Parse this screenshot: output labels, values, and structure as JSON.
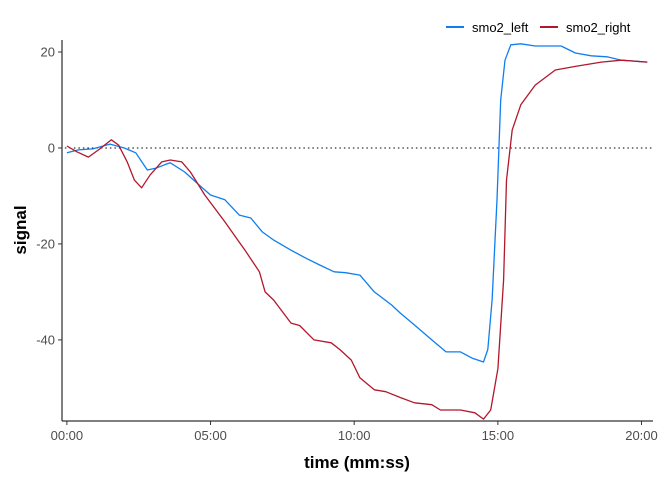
{
  "chart_data": {
    "type": "line",
    "title": "",
    "xlabel": "time (mm:ss)",
    "ylabel": "signal",
    "x_unit": "minutes",
    "xlim": [
      -0.17,
      20.4
    ],
    "ylim": [
      -56.9,
      22.5
    ],
    "x_ticks": [
      0,
      5,
      10,
      15,
      20
    ],
    "x_tick_labels": [
      "00:00",
      "05:00",
      "10:00",
      "15:00",
      "20:00"
    ],
    "y_ticks": [
      20,
      0,
      -20,
      -40
    ],
    "y_tick_labels": [
      "20",
      "0",
      "-20",
      "-40"
    ],
    "grid": false,
    "reference_line": {
      "y": 0,
      "style": "dotted"
    },
    "legend_position": "top-right",
    "series": [
      {
        "name": "smo2_left",
        "color": "#0F7FEF",
        "x": [
          0,
          0.4,
          0.9,
          1.5,
          2.0,
          2.4,
          2.8,
          3.1,
          3.4,
          3.6,
          4.1,
          4.6,
          5.0,
          5.5,
          6.0,
          6.4,
          6.8,
          7.2,
          7.8,
          8.3,
          8.8,
          9.3,
          9.7,
          10.2,
          10.7,
          11.3,
          11.6,
          12.1,
          12.7,
          13.2,
          13.7,
          14.1,
          14.5,
          14.65,
          14.8,
          14.97,
          15.1,
          15.25,
          15.45,
          15.8,
          16.3,
          17.2,
          17.7,
          18.25,
          18.8,
          19.3,
          20.2
        ],
        "y": [
          -1,
          -0.4,
          -0.2,
          0.8,
          0,
          -1,
          -4.6,
          -4.2,
          -3.5,
          -3.1,
          -5,
          -7.7,
          -9.8,
          -10.8,
          -14,
          -14.6,
          -17.5,
          -19.2,
          -21.3,
          -22.9,
          -24.4,
          -25.8,
          -26,
          -26.5,
          -30,
          -32.7,
          -34.4,
          -36.9,
          -40,
          -42.5,
          -42.5,
          -43.8,
          -44.6,
          -42,
          -31.7,
          -10.8,
          10,
          18.3,
          21.5,
          21.7,
          21.25,
          21.25,
          19.8,
          19.2,
          19,
          18.3,
          17.9
        ]
      },
      {
        "name": "smo2_right",
        "color": "#B2182B",
        "x": [
          0,
          0.35,
          0.75,
          1.1,
          1.55,
          1.8,
          2.1,
          2.35,
          2.6,
          2.9,
          3.3,
          3.6,
          4.0,
          4.3,
          4.8,
          5.5,
          6.2,
          6.7,
          6.9,
          7.2,
          7.8,
          8.1,
          8.6,
          9.2,
          9.5,
          9.9,
          10.2,
          10.7,
          11.1,
          11.6,
          12.1,
          12.7,
          13.0,
          13.7,
          14.2,
          14.5,
          14.75,
          15.0,
          15.2,
          15.3,
          15.5,
          15.8,
          16.3,
          17.0,
          17.7,
          18.6,
          19.3,
          20.2
        ],
        "y": [
          0.4,
          -0.8,
          -1.9,
          -0.4,
          1.7,
          0.6,
          -2.9,
          -6.7,
          -8.3,
          -5.6,
          -2.9,
          -2.5,
          -2.9,
          -5,
          -9.8,
          -15.4,
          -21.3,
          -25.8,
          -30,
          -31.7,
          -36.5,
          -37,
          -40,
          -40.6,
          -42,
          -44.2,
          -47.9,
          -50.4,
          -50.8,
          -52,
          -53.1,
          -53.5,
          -54.6,
          -54.6,
          -55.2,
          -56.5,
          -54.6,
          -46,
          -27.5,
          -6.7,
          3.75,
          9,
          13.1,
          16.25,
          17,
          17.9,
          18.3,
          17.9
        ]
      }
    ]
  }
}
